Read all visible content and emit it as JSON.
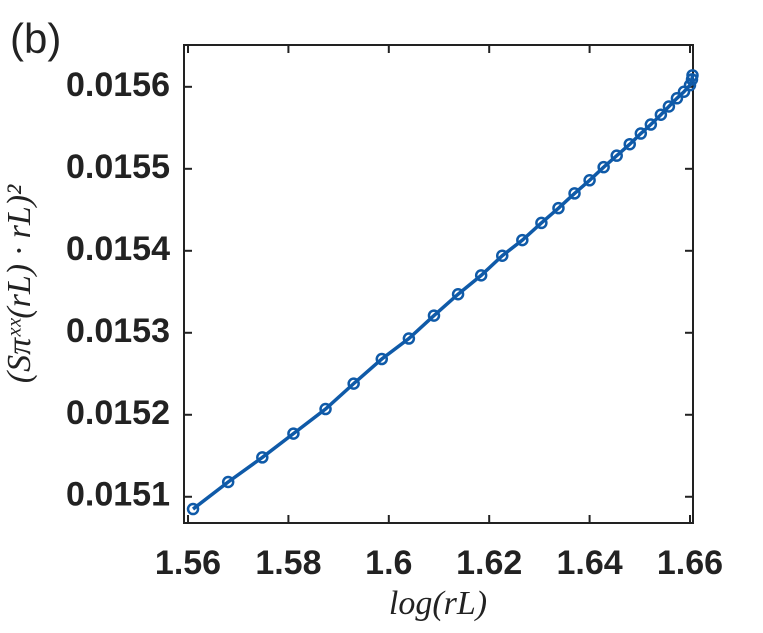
{
  "chart_data": {
    "type": "line",
    "panel_label": "(b)",
    "x_label": "log(rL)",
    "y_label": "(Sπˣˣ(rL) · rL)²",
    "xlim": [
      1.5592,
      1.6606
    ],
    "ylim": [
      0.015068,
      0.015651
    ],
    "xticks": [
      1.56,
      1.58,
      1.6,
      1.62,
      1.64,
      1.66
    ],
    "yticks": [
      0.0151,
      0.0152,
      0.0153,
      0.0154,
      0.0155,
      0.0156
    ],
    "series": [
      {
        "color": "#0f5aa8",
        "x": [
          1.561,
          1.568,
          1.5748,
          1.581,
          1.5874,
          1.593,
          1.5986,
          1.604,
          1.609,
          1.6138,
          1.6184,
          1.6226,
          1.6266,
          1.6304,
          1.6338,
          1.637,
          1.64,
          1.6428,
          1.6454,
          1.648,
          1.6502,
          1.6522,
          1.6542,
          1.6558,
          1.6574,
          1.6588,
          1.66,
          1.6604,
          1.6605
        ],
        "values": [
          0.015085,
          0.015118,
          0.015148,
          0.015177,
          0.015207,
          0.015238,
          0.015268,
          0.015293,
          0.015321,
          0.015347,
          0.01537,
          0.015394,
          0.015413,
          0.015434,
          0.015452,
          0.01547,
          0.015486,
          0.015502,
          0.015516,
          0.01553,
          0.015543,
          0.015554,
          0.015566,
          0.015576,
          0.015586,
          0.015594,
          0.015602,
          0.015609,
          0.015614
        ]
      }
    ]
  }
}
